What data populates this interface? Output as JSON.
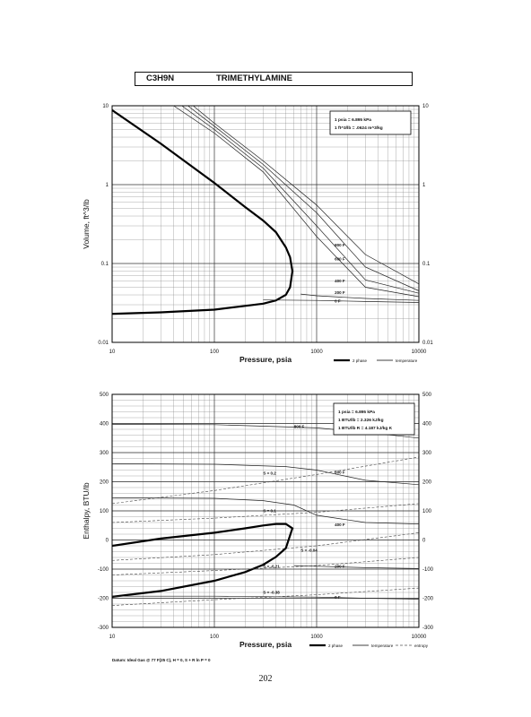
{
  "page": {
    "formula": "C3H9N",
    "name": "TRIMETHYLAMINE",
    "page_number": "202",
    "datum_note": "Datum: Ideal Gas @ 77 F(25 C), H = 0, S + R ln P = 0"
  },
  "chart_data": [
    {
      "type": "line",
      "title": "",
      "xlabel": "Pressure,  psia",
      "ylabel": "Volume, ft^3/lb",
      "xscale": "log",
      "yscale": "log",
      "xlim": [
        10,
        10000
      ],
      "ylim": [
        0.01,
        10
      ],
      "xticks": [
        "10",
        "100",
        "1000",
        "10000"
      ],
      "yticks": [
        "0.01",
        "0.1",
        "1",
        "10"
      ],
      "grid": true,
      "info_box": [
        "1 psia = 6.895 kPa",
        "1 ft^3/lb = .0624 m^3/kg"
      ],
      "legend": [
        "2 phase",
        "temperature"
      ],
      "legend_position": "bottom-right",
      "series": [
        {
          "name": "2 phase",
          "style": "thick",
          "x": [
            10,
            30,
            100,
            200,
            300,
            400,
            500,
            550,
            580,
            550,
            500,
            400,
            300,
            200,
            100,
            30,
            10
          ],
          "y": [
            0.023,
            0.024,
            0.026,
            0.029,
            0.031,
            0.034,
            0.04,
            0.05,
            0.08,
            0.12,
            0.16,
            0.25,
            0.35,
            0.52,
            1.05,
            3.3,
            8.8
          ]
        },
        {
          "name": "0 F",
          "style": "temperature",
          "x": [
            300,
            1000,
            3000,
            10000
          ],
          "y": [
            0.0345,
            0.034,
            0.033,
            0.032
          ]
        },
        {
          "name": "200 F",
          "style": "temperature",
          "x": [
            700,
            1000,
            3000,
            10000
          ],
          "y": [
            0.041,
            0.039,
            0.036,
            0.034
          ]
        },
        {
          "name": "400 F",
          "style": "temperature",
          "x": [
            40,
            100,
            300,
            1000,
            3000,
            10000
          ],
          "y": [
            10,
            4.5,
            1.45,
            0.22,
            0.05,
            0.038
          ]
        },
        {
          "name": "500 F",
          "style": "temperature",
          "x": [
            48,
            100,
            300,
            1000,
            3000,
            10000
          ],
          "y": [
            10,
            5.0,
            1.62,
            0.3,
            0.062,
            0.042
          ]
        },
        {
          "name": "600 F",
          "style": "temperature",
          "x": [
            55,
            100,
            300,
            1000,
            3000,
            10000
          ],
          "y": [
            10,
            5.5,
            1.8,
            0.44,
            0.09,
            0.045
          ]
        },
        {
          "name": "",
          "style": "temperature",
          "x": [
            62,
            100,
            300,
            1000,
            3000,
            10000
          ],
          "y": [
            10,
            6.0,
            2.0,
            0.55,
            0.13,
            0.055
          ]
        }
      ],
      "annotations": [
        "800 F",
        "600 F",
        "400 F",
        "200 F",
        "0 F"
      ]
    },
    {
      "type": "line",
      "title": "",
      "xlabel": "Pressure,  psia",
      "ylabel": "Enthalpy, BTU/lb",
      "xscale": "log",
      "yscale": "linear",
      "xlim": [
        10,
        10000
      ],
      "ylim": [
        -300,
        500
      ],
      "xticks": [
        "10",
        "100",
        "1000",
        "10000"
      ],
      "yticks": [
        "-300",
        "-200",
        "-100",
        "0",
        "100",
        "200",
        "300",
        "400",
        "500"
      ],
      "grid": true,
      "info_box": [
        "1 psia = 6.895 kPa",
        "1 BTU/lb = 2.326 kJ/kg",
        "1 BTU/lb R = 4.187 kJ/kg K"
      ],
      "legend": [
        "2 phase",
        "temperature",
        "entropy"
      ],
      "legend_position": "bottom-right",
      "series": [
        {
          "name": "2 phase",
          "style": "thick",
          "x": [
            10,
            30,
            100,
            200,
            300,
            400,
            500,
            580,
            500,
            400,
            300,
            200,
            100,
            30,
            10
          ],
          "y": [
            -195,
            -175,
            -140,
            -110,
            -85,
            -58,
            -28,
            40,
            55,
            55,
            50,
            40,
            25,
            5,
            -20
          ]
        },
        {
          "name": "800 F",
          "style": "temperature",
          "x": [
            10,
            100,
            1000,
            3000,
            10000
          ],
          "y": [
            397,
            396,
            385,
            370,
            350
          ]
        },
        {
          "name": "600 F",
          "style": "temperature",
          "x": [
            10,
            100,
            500,
            1000,
            3000,
            10000
          ],
          "y": [
            262,
            260,
            252,
            240,
            205,
            190
          ]
        },
        {
          "name": "400 F",
          "style": "temperature",
          "x": [
            10,
            100,
            300,
            600,
            1000,
            3000,
            10000
          ],
          "y": [
            145,
            143,
            135,
            120,
            85,
            60,
            55
          ]
        },
        {
          "name": "200 F",
          "style": "temperature",
          "x": [
            600,
            1000,
            3000,
            10000
          ],
          "y": [
            -88,
            -90,
            -95,
            -98
          ]
        },
        {
          "name": "0 F",
          "style": "temperature",
          "x": [
            10,
            100,
            1000,
            3000,
            10000
          ],
          "y": [
            -193,
            -193,
            -196,
            -200,
            -203
          ]
        },
        {
          "name": "S = 0.2",
          "style": "entropy",
          "x": [
            10,
            100,
            1000,
            10000
          ],
          "y": [
            125,
            170,
            225,
            285
          ]
        },
        {
          "name": "S = 0.1",
          "style": "entropy",
          "x": [
            10,
            100,
            1000,
            10000
          ],
          "y": [
            60,
            75,
            95,
            125
          ]
        },
        {
          "name": "S = -0.04",
          "style": "entropy",
          "x": [
            10,
            100,
            1000,
            10000
          ],
          "y": [
            -70,
            -50,
            -20,
            25
          ]
        },
        {
          "name": "S = -0.21",
          "style": "entropy",
          "x": [
            10,
            100,
            1000,
            10000
          ],
          "y": [
            -120,
            -105,
            -88,
            -60
          ]
        },
        {
          "name": "S = -0.38",
          "style": "entropy",
          "x": [
            10,
            100,
            1000,
            10000
          ],
          "y": [
            -225,
            -205,
            -188,
            -165
          ]
        }
      ],
      "annotations": [
        "800 F",
        "600 F",
        "400 F",
        "200 F",
        "0 F",
        "S = 0.2",
        "S = 0.1",
        "S = -0.04",
        "S = -0.21",
        "S = -0.38"
      ]
    }
  ]
}
